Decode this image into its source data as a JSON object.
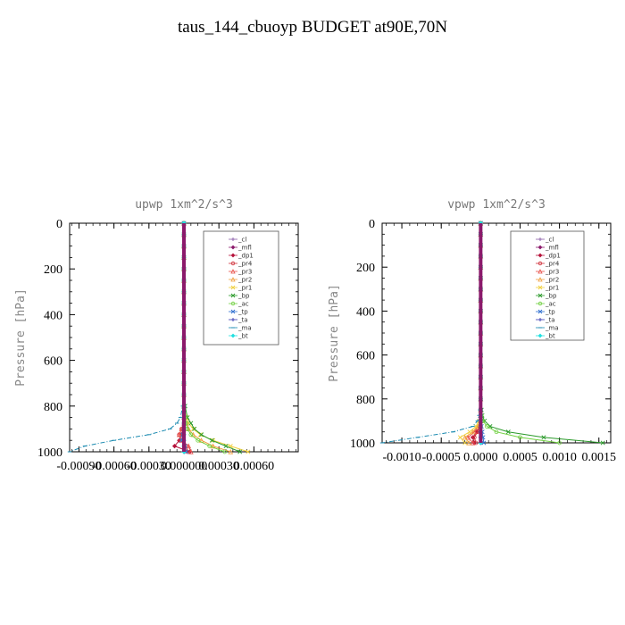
{
  "title": "taus_144_cbuoyp  BUDGET at90E,70N",
  "legend_items": [
    {
      "name": "_cl",
      "color": "#8a5ca8",
      "marker": "+"
    },
    {
      "name": "_mfl",
      "color": "#8b1a6b",
      "marker": "diamond"
    },
    {
      "name": "_dp1",
      "color": "#b5123a",
      "marker": "diamond"
    },
    {
      "name": "_pr4",
      "color": "#d0303a",
      "marker": "circle"
    },
    {
      "name": "_pr3",
      "color": "#e8504a",
      "marker": "triangle"
    },
    {
      "name": "_pr2",
      "color": "#f0a040",
      "marker": "triangle"
    },
    {
      "name": "_pr1",
      "color": "#f0d040",
      "marker": "x"
    },
    {
      "name": "_bp",
      "color": "#2a9a2a",
      "marker": "x"
    },
    {
      "name": "_ac",
      "color": "#70d040",
      "marker": "circle"
    },
    {
      "name": "_tp",
      "color": "#3070d0",
      "marker": "x"
    },
    {
      "name": "_ta",
      "color": "#3a3ab0",
      "marker": "+"
    },
    {
      "name": "_ma",
      "color": "#1a8ab0",
      "marker": "dash"
    },
    {
      "name": "_bt",
      "color": "#20e0e0",
      "marker": "diamond"
    }
  ],
  "chart_data": [
    {
      "type": "line",
      "title": "upwp   1xm^2/s^3",
      "ylabel": "Pressure [hPa]",
      "xlim": [
        -0.00098,
        0.00098
      ],
      "ylim": [
        1000,
        0
      ],
      "y_inverted": true,
      "xticks": [
        -0.0009,
        -0.0006,
        -0.0003,
        0.0,
        0.0003,
        0.0006
      ],
      "xtick_labels": [
        "-0.00090",
        "-0.00060",
        "-0.00030",
        "0.000000",
        "0.00030",
        "0.00060"
      ],
      "yticks": [
        0,
        200,
        400,
        600,
        800,
        1000
      ],
      "ytick_labels": [
        "0",
        "200",
        "400",
        "600",
        "800",
        "1000"
      ],
      "pressure": [
        0,
        50,
        100,
        150,
        200,
        250,
        300,
        350,
        400,
        450,
        500,
        550,
        600,
        650,
        700,
        750,
        800,
        850,
        875,
        900,
        925,
        950,
        975,
        1000
      ],
      "series": [
        {
          "name": "_cl",
          "values": [
            0,
            0,
            0,
            0,
            0,
            0,
            0,
            0,
            0,
            0,
            0,
            0,
            0,
            0,
            0,
            0,
            0,
            0,
            0,
            0,
            0,
            0,
            0,
            0
          ]
        },
        {
          "name": "_mfl",
          "values": [
            0,
            0,
            0,
            0,
            0,
            0,
            0,
            0,
            0,
            0,
            0,
            0,
            0,
            0,
            0,
            0,
            0,
            0,
            0,
            0,
            0,
            0,
            0,
            0
          ]
        },
        {
          "name": "_dp1",
          "values": [
            0,
            0,
            0,
            0,
            0,
            0,
            0,
            0,
            0,
            0,
            0,
            0,
            0,
            0,
            0,
            0,
            0,
            0,
            0,
            -1e-05,
            -2e-05,
            -4e-05,
            -8e-05,
            5e-05
          ]
        },
        {
          "name": "_pr4",
          "values": [
            0,
            0,
            0,
            0,
            0,
            0,
            0,
            0,
            0,
            0,
            0,
            0,
            0,
            0,
            0,
            0,
            0,
            0,
            0,
            -2e-05,
            -4e-05,
            -3e-05,
            2e-05,
            3e-05
          ]
        },
        {
          "name": "_pr3",
          "values": [
            0,
            0,
            0,
            0,
            0,
            0,
            0,
            0,
            0,
            0,
            0,
            0,
            0,
            0,
            0,
            0,
            0,
            0,
            0,
            -2e-05,
            -4e-05,
            -2e-05,
            4e-05,
            6e-05
          ]
        },
        {
          "name": "_pr2",
          "values": [
            0,
            0,
            0,
            0,
            0,
            0,
            0,
            0,
            0,
            0,
            0,
            0,
            0,
            0,
            0,
            0,
            0,
            1e-05,
            2e-05,
            4e-05,
            8e-05,
            0.00015,
            0.00025,
            0.0004
          ]
        },
        {
          "name": "_pr1",
          "values": [
            0,
            0,
            0,
            0,
            0,
            0,
            0,
            0,
            0,
            0,
            0,
            0,
            0,
            0,
            0,
            0,
            0,
            2e-05,
            4e-05,
            8e-05,
            0.00014,
            0.00025,
            0.0004,
            0.00055
          ]
        },
        {
          "name": "_bp",
          "values": [
            0,
            0,
            0,
            0,
            0,
            0,
            0,
            0,
            0,
            0,
            0,
            0,
            0,
            0,
            0,
            0,
            1e-05,
            3e-05,
            6e-05,
            9e-05,
            0.00015,
            0.00024,
            0.00036,
            0.00048
          ]
        },
        {
          "name": "_ac",
          "values": [
            0,
            0,
            0,
            0,
            0,
            0,
            0,
            0,
            0,
            0,
            0,
            0,
            0,
            0,
            0,
            0,
            0,
            1e-05,
            2e-05,
            3e-05,
            6e-05,
            0.00012,
            0.00022,
            0.00035
          ]
        },
        {
          "name": "_tp",
          "values": [
            0,
            0,
            0,
            0,
            0,
            0,
            0,
            0,
            0,
            0,
            0,
            0,
            0,
            0,
            0,
            0,
            0,
            0,
            0,
            0,
            -1e-05,
            -2e-05,
            1e-05,
            2e-05
          ]
        },
        {
          "name": "_ta",
          "values": [
            0,
            0,
            0,
            0,
            0,
            0,
            0,
            0,
            0,
            0,
            0,
            0,
            0,
            0,
            0,
            0,
            0,
            0,
            0,
            0,
            0,
            0,
            0,
            0
          ]
        },
        {
          "name": "_ma",
          "values": [
            0,
            0,
            0,
            0,
            0,
            0,
            0,
            0,
            0,
            0,
            0,
            0,
            0,
            0,
            0,
            0,
            -1e-05,
            -3e-05,
            -6e-05,
            -0.00012,
            -0.0003,
            -0.0006,
            -0.00085,
            -0.00098
          ]
        },
        {
          "name": "_bt",
          "values": [
            0,
            0,
            0,
            0,
            0,
            0,
            0,
            0,
            0,
            0,
            0,
            0,
            0,
            0,
            0,
            0,
            0,
            0,
            0,
            0,
            0,
            0,
            0,
            0
          ]
        }
      ]
    },
    {
      "type": "line",
      "title": "vpwp   1xm^2/s^3",
      "ylabel": "Pressure [hPa]",
      "xlim": [
        -0.00125,
        0.00165
      ],
      "ylim": [
        1000,
        0
      ],
      "y_inverted": true,
      "xticks": [
        -0.001,
        -0.0005,
        0.0,
        0.0005,
        0.001,
        0.0015
      ],
      "xtick_labels": [
        "-0.0010",
        "-0.0005",
        "0.0000",
        "0.0005",
        "0.0010",
        "0.0015"
      ],
      "yticks": [
        0,
        200,
        400,
        600,
        800,
        1000
      ],
      "ytick_labels": [
        "0",
        "200",
        "400",
        "600",
        "800",
        "1000"
      ],
      "pressure": [
        0,
        50,
        100,
        150,
        200,
        250,
        300,
        350,
        400,
        450,
        500,
        550,
        600,
        650,
        700,
        750,
        800,
        850,
        875,
        900,
        925,
        950,
        975,
        1000
      ],
      "series": [
        {
          "name": "_cl",
          "values": [
            0,
            0,
            0,
            0,
            0,
            0,
            0,
            0,
            0,
            0,
            0,
            0,
            0,
            0,
            0,
            0,
            0,
            0,
            0,
            0,
            0,
            0,
            0,
            0
          ]
        },
        {
          "name": "_mfl",
          "values": [
            0,
            0,
            0,
            0,
            0,
            0,
            0,
            0,
            0,
            0,
            0,
            0,
            0,
            0,
            0,
            0,
            0,
            0,
            0,
            0,
            0,
            0,
            0,
            0
          ]
        },
        {
          "name": "_dp1",
          "values": [
            0,
            0,
            0,
            0,
            0,
            0,
            0,
            0,
            0,
            0,
            0,
            0,
            0,
            0,
            0,
            0,
            0,
            0,
            0,
            0,
            -2e-05,
            -5e-05,
            -0.0001,
            -8e-05
          ]
        },
        {
          "name": "_pr4",
          "values": [
            0,
            0,
            0,
            0,
            0,
            0,
            0,
            0,
            0,
            0,
            0,
            0,
            0,
            0,
            0,
            0,
            0,
            0,
            0,
            0,
            -2e-05,
            -4e-05,
            -8e-05,
            -6e-05
          ]
        },
        {
          "name": "_pr3",
          "values": [
            0,
            0,
            0,
            0,
            0,
            0,
            0,
            0,
            0,
            0,
            0,
            0,
            0,
            0,
            0,
            0,
            0,
            0,
            0,
            0,
            -3e-05,
            -8e-05,
            -0.00016,
            -0.0001
          ]
        },
        {
          "name": "_pr2",
          "values": [
            0,
            0,
            0,
            0,
            0,
            0,
            0,
            0,
            0,
            0,
            0,
            0,
            0,
            0,
            0,
            0,
            0,
            0,
            0,
            0,
            -4e-05,
            -0.0001,
            -0.0002,
            -0.00015
          ]
        },
        {
          "name": "_pr1",
          "values": [
            0,
            0,
            0,
            0,
            0,
            0,
            0,
            0,
            0,
            0,
            0,
            0,
            0,
            0,
            0,
            0,
            0,
            0,
            0,
            -2e-05,
            -6e-05,
            -0.00014,
            -0.00026,
            -0.0002
          ]
        },
        {
          "name": "_bp",
          "values": [
            0,
            0,
            0,
            0,
            0,
            0,
            0,
            0,
            0,
            0,
            0,
            0,
            0,
            0,
            0,
            0,
            0,
            1e-05,
            2e-05,
            5e-05,
            0.00012,
            0.00035,
            0.0008,
            0.00155
          ]
        },
        {
          "name": "_ac",
          "values": [
            0,
            0,
            0,
            0,
            0,
            0,
            0,
            0,
            0,
            0,
            0,
            0,
            0,
            0,
            0,
            0,
            0,
            0,
            1e-05,
            3e-05,
            8e-05,
            0.0002,
            0.0005,
            0.001
          ]
        },
        {
          "name": "_tp",
          "values": [
            0,
            0,
            0,
            0,
            0,
            0,
            0,
            0,
            0,
            0,
            0,
            0,
            0,
            0,
            0,
            0,
            0,
            0,
            0,
            0,
            1e-05,
            2e-05,
            3e-05,
            4e-05
          ]
        },
        {
          "name": "_ta",
          "values": [
            0,
            0,
            0,
            0,
            0,
            0,
            0,
            0,
            0,
            0,
            0,
            0,
            0,
            0,
            0,
            0,
            0,
            0,
            0,
            0,
            0,
            0,
            0,
            0
          ]
        },
        {
          "name": "_ma",
          "values": [
            0,
            0,
            0,
            0,
            0,
            0,
            0,
            0,
            0,
            0,
            0,
            0,
            0,
            0,
            0,
            0,
            0,
            -1e-05,
            -2e-05,
            -4e-05,
            -0.0001,
            -0.00035,
            -0.0008,
            -0.00125
          ]
        },
        {
          "name": "_bt",
          "values": [
            0,
            0,
            0,
            0,
            0,
            0,
            0,
            0,
            0,
            0,
            0,
            0,
            0,
            0,
            0,
            0,
            0,
            0,
            0,
            0,
            0,
            0,
            0,
            0
          ]
        }
      ]
    }
  ]
}
